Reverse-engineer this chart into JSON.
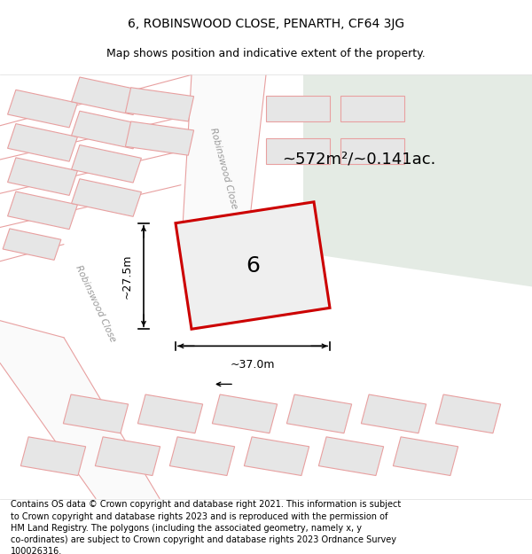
{
  "title_line1": "6, ROBINSWOOD CLOSE, PENARTH, CF64 3JG",
  "title_line2": "Map shows position and indicative extent of the property.",
  "footer_text": "Contains OS data © Crown copyright and database right 2021. This information is subject\nto Crown copyright and database rights 2023 and is reproduced with the permission of\nHM Land Registry. The polygons (including the associated geometry, namely x, y\nco-ordinates) are subject to Crown copyright and database rights 2023 Ordnance Survey\n100026316.",
  "area_text": "~572m²/~0.141ac.",
  "width_text": "~37.0m",
  "height_text": "~27.5m",
  "street_name_top": "Robinswood Close",
  "street_name_left": "Robinswood Close",
  "property_number": "6",
  "map_bg": "#f2f2f2",
  "green_area_color": "#e4ebe4",
  "building_fill": "#e6e6e6",
  "building_outline": "#e8a0a0",
  "property_outline": "#cc0000",
  "property_fill": "#efefef",
  "road_fill": "#fafafa",
  "title_fontsize": 10,
  "subtitle_fontsize": 9,
  "footer_fontsize": 7,
  "number_fontsize": 18,
  "area_fontsize": 13,
  "dim_fontsize": 9,
  "street_fontsize": 7.5
}
